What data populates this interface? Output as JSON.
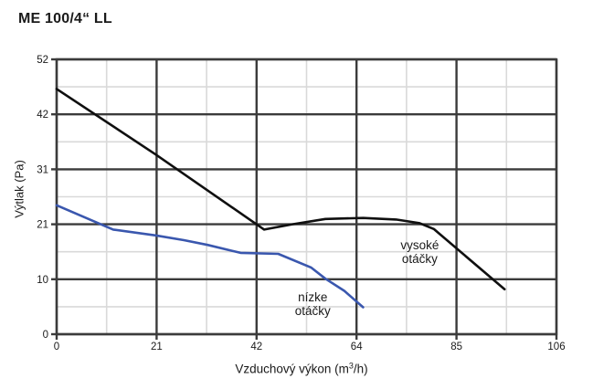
{
  "title": "ME 100/4“ LL",
  "chart_data": {
    "type": "line",
    "title": "ME 100/4“ LL",
    "xlabel": "Vzduchový výkon (m³/h)",
    "xlabel_parts": {
      "pre": "Vzduchový výkon (m",
      "sup": "3",
      "post": "/h)"
    },
    "ylabel": "Výtlak (Pa)",
    "xlim": [
      0,
      106
    ],
    "ylim": [
      0,
      52
    ],
    "xticklabels": [
      "0",
      "21",
      "42",
      "64",
      "85",
      "106"
    ],
    "yticklabels": [
      "0",
      "10",
      "21",
      "31",
      "42",
      "52"
    ],
    "grid": {
      "major": true,
      "minor": true,
      "major_color": "#3b3b3b",
      "minor_color": "#d9d9d9",
      "background": "#ffffff"
    },
    "legend_position": "inline-labels",
    "series": [
      {
        "name": "vysoké otáčky",
        "color": "#0f0f0f",
        "points": [
          [
            0,
            46.4
          ],
          [
            21,
            34
          ],
          [
            44,
            19.8
          ],
          [
            50,
            20.8
          ],
          [
            57,
            21.8
          ],
          [
            65,
            22
          ],
          [
            72,
            21.7
          ],
          [
            77,
            21
          ],
          [
            80,
            19.9
          ],
          [
            95,
            8.5
          ]
        ]
      },
      {
        "name": "nízke otáčky",
        "color": "#3a57ae",
        "points": [
          [
            0,
            24.4
          ],
          [
            12,
            19.8
          ],
          [
            21,
            18.7
          ],
          [
            27,
            17.8
          ],
          [
            32,
            16.9
          ],
          [
            39,
            15.4
          ],
          [
            47,
            15.2
          ],
          [
            54,
            12.6
          ],
          [
            57,
            10.5
          ],
          [
            61,
            8.2
          ],
          [
            65,
            5.1
          ]
        ]
      }
    ],
    "annotations": [
      {
        "text": "vysoké\notáčky",
        "x": 77,
        "y": 15.5
      },
      {
        "text": "nízke\notáčky",
        "x": 54.3,
        "y": 5.7
      }
    ]
  }
}
